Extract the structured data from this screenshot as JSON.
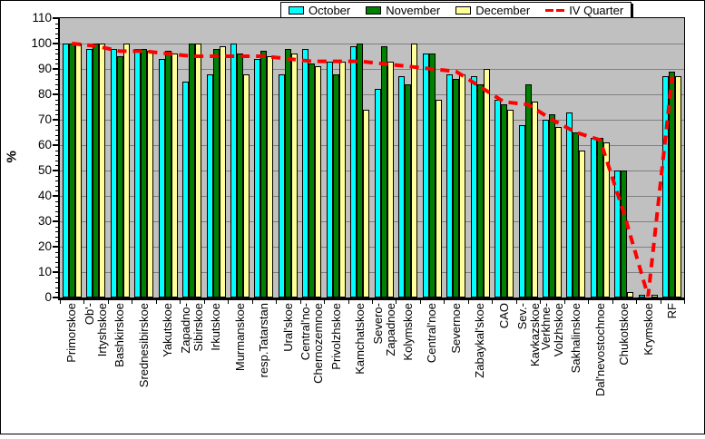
{
  "chart_data": {
    "type": "bar",
    "title": "",
    "ylabel": "%",
    "ylim": [
      0,
      110
    ],
    "yticks": [
      0,
      10,
      20,
      30,
      40,
      50,
      60,
      70,
      80,
      90,
      100,
      110
    ],
    "grid": true,
    "plot_bg": "#C0C0C0",
    "grid_color": "#808080",
    "legend_position": "top",
    "categories": [
      "Primorskoe",
      "Ob'-Irtyshskoe",
      "Bashkirskoe",
      "Srednesibirskoe",
      "Yakutskoe",
      "Zapadno-Sibirskoe",
      "Irkutskoe",
      "Murmanskoe",
      "resp.Tatarstan",
      "Ural'skoe",
      "Central'no-Chernozemnoe",
      "Privolzhskoe",
      "Kamchatskoe",
      "Severo-Zapadnoe",
      "Kolymskoe",
      "Central'noe",
      "Severnoe",
      "Zabaykal'skoe",
      "CAO",
      "Sev.-Kavkazskoe",
      "Verkhne-Volzhskoe",
      "Sakhalinskoe",
      "Dal'nevostochnoe",
      "Chukotskoe",
      "Krymskoe",
      "RF"
    ],
    "category_lines": [
      [
        "Primorskoe"
      ],
      [
        "Ob'-",
        "Irtyshskoe"
      ],
      [
        "Bashkirskoe"
      ],
      [
        "Srednesibirskoe"
      ],
      [
        "Yakutskoe"
      ],
      [
        "Zapadno-",
        "Sibirskoe"
      ],
      [
        "Irkutskoe"
      ],
      [
        "Murmanskoe"
      ],
      [
        "resp.Tatarstan"
      ],
      [
        "Ural'skoe"
      ],
      [
        "Central'no-",
        "Chernozemnoe"
      ],
      [
        "Privolzhskoe"
      ],
      [
        "Kamchatskoe"
      ],
      [
        "Severo-",
        "Zapadnoe"
      ],
      [
        "Kolymskoe"
      ],
      [
        "Central'noe"
      ],
      [
        "Severnoe"
      ],
      [
        "Zabaykal'skoe"
      ],
      [
        "CAO"
      ],
      [
        "Sev.-",
        "Kavkazskoe"
      ],
      [
        "Verkhne-",
        "Volzhskoe"
      ],
      [
        "Sakhalinskoe"
      ],
      [
        "Dal'nevostochnoe"
      ],
      [
        "Chukotskoe"
      ],
      [
        "Krymskoe"
      ],
      [
        "RF"
      ]
    ],
    "series": [
      {
        "name": "October",
        "type": "bar",
        "color": "#00FFFF",
        "values": [
          100,
          98,
          98,
          98,
          94,
          85,
          88,
          100,
          94,
          88,
          98,
          93,
          99,
          82,
          87,
          96,
          88,
          87,
          78,
          68,
          70,
          73,
          63,
          50,
          1,
          87
        ]
      },
      {
        "name": "November",
        "type": "bar",
        "color": "#008000",
        "values": [
          100,
          100,
          95,
          98,
          97,
          100,
          98,
          96,
          97,
          98,
          92,
          88,
          100,
          99,
          84,
          96,
          86,
          84,
          76,
          84,
          72,
          65,
          63,
          50,
          0,
          89
        ]
      },
      {
        "name": "December",
        "type": "bar",
        "color": "#FFFF99",
        "values": [
          100,
          100,
          100,
          97,
          96,
          100,
          99,
          88,
          95,
          96,
          91,
          93,
          74,
          93,
          100,
          78,
          88,
          90,
          74,
          77,
          67,
          58,
          61,
          2,
          1,
          87
        ]
      },
      {
        "name": "IV Quarter",
        "type": "line",
        "color": "#FF0000",
        "dashed": true,
        "values": [
          100,
          99,
          97,
          97,
          96,
          95,
          95,
          95,
          95,
          94,
          93,
          93,
          93,
          92,
          91,
          90,
          89,
          83,
          77,
          76,
          70,
          65,
          62,
          33,
          0.5,
          87
        ]
      }
    ]
  }
}
